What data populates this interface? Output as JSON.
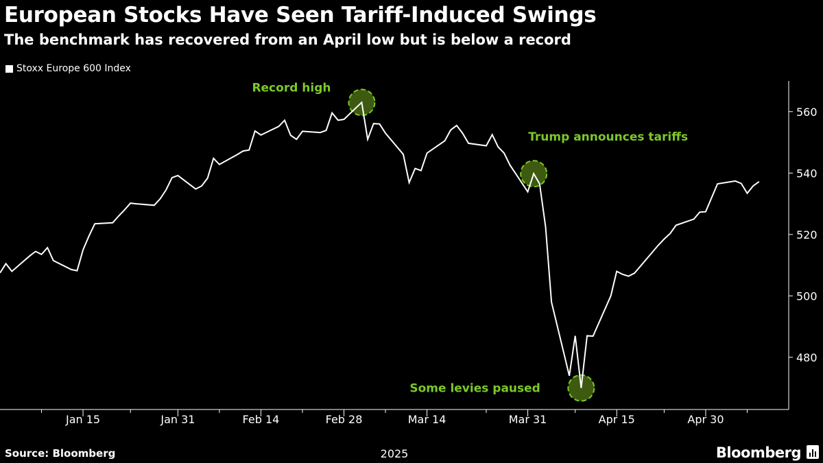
{
  "header": {
    "title": "European Stocks Have Seen Tariff-Induced Swings",
    "subtitle": "The benchmark has recovered from an April low but is below a record"
  },
  "footer": {
    "source": "Source: Bloomberg",
    "brand": "Bloomberg"
  },
  "colors": {
    "background": "#000000",
    "line": "#ffffff",
    "annotation": "#7cc928",
    "marker_fill": "#3d5a10"
  },
  "chart_data": {
    "type": "line",
    "title": "European Stocks Have Seen Tariff-Induced Swings",
    "subtitle": "The benchmark has recovered from an April low but is below a record",
    "xlabel": "2025",
    "ylabel": "",
    "ylim": [
      463,
      570
    ],
    "yticks": [
      480,
      500,
      520,
      540,
      560
    ],
    "ytick_labels": [
      "480",
      "500",
      "520",
      "540",
      "560"
    ],
    "xticks": [
      {
        "date": "2025-01-15",
        "label": "Jan 15"
      },
      {
        "date": "2025-01-31",
        "label": "Jan 31"
      },
      {
        "date": "2025-02-14",
        "label": "Feb 14"
      },
      {
        "date": "2025-02-28",
        "label": "Feb 28"
      },
      {
        "date": "2025-03-14",
        "label": "Mar 14"
      },
      {
        "date": "2025-03-31",
        "label": "Mar 31"
      },
      {
        "date": "2025-04-15",
        "label": "Apr 15"
      },
      {
        "date": "2025-04-30",
        "label": "Apr 30"
      }
    ],
    "minor_ticks": [
      "2025-01-08",
      "2025-01-23",
      "2025-02-07",
      "2025-02-21",
      "2025-03-07",
      "2025-03-24",
      "2025-04-08",
      "2025-04-23",
      "2025-05-07"
    ],
    "xlim": [
      "2025-01-01",
      "2025-05-14"
    ],
    "legend": "top-left",
    "grid": false,
    "series": [
      {
        "name": "Stoxx Europe 600 Index",
        "x": [
          "2025-01-01",
          "2025-01-02",
          "2025-01-03",
          "2025-01-06",
          "2025-01-07",
          "2025-01-08",
          "2025-01-09",
          "2025-01-10",
          "2025-01-13",
          "2025-01-14",
          "2025-01-15",
          "2025-01-16",
          "2025-01-17",
          "2025-01-20",
          "2025-01-21",
          "2025-01-22",
          "2025-01-23",
          "2025-01-24",
          "2025-01-27",
          "2025-01-28",
          "2025-01-29",
          "2025-01-30",
          "2025-01-31",
          "2025-02-03",
          "2025-02-04",
          "2025-02-05",
          "2025-02-06",
          "2025-02-07",
          "2025-02-10",
          "2025-02-11",
          "2025-02-12",
          "2025-02-13",
          "2025-02-14",
          "2025-02-17",
          "2025-02-18",
          "2025-02-19",
          "2025-02-20",
          "2025-02-21",
          "2025-02-24",
          "2025-02-25",
          "2025-02-26",
          "2025-02-27",
          "2025-02-28",
          "2025-03-03",
          "2025-03-04",
          "2025-03-05",
          "2025-03-06",
          "2025-03-07",
          "2025-03-10",
          "2025-03-11",
          "2025-03-12",
          "2025-03-13",
          "2025-03-14",
          "2025-03-17",
          "2025-03-18",
          "2025-03-19",
          "2025-03-20",
          "2025-03-21",
          "2025-03-24",
          "2025-03-25",
          "2025-03-26",
          "2025-03-27",
          "2025-03-28",
          "2025-03-31",
          "2025-04-01",
          "2025-04-02",
          "2025-04-03",
          "2025-04-04",
          "2025-04-07",
          "2025-04-08",
          "2025-04-09",
          "2025-04-10",
          "2025-04-11",
          "2025-04-14",
          "2025-04-15",
          "2025-04-16",
          "2025-04-17",
          "2025-04-18",
          "2025-04-22",
          "2025-04-23",
          "2025-04-24",
          "2025-04-25",
          "2025-04-28",
          "2025-04-29",
          "2025-04-30",
          "2025-05-02",
          "2025-05-05",
          "2025-05-06",
          "2025-05-07",
          "2025-05-08",
          "2025-05-09"
        ],
        "values": [
          507.5,
          510.5,
          508,
          513,
          514.5,
          513.5,
          515.7,
          511.5,
          508.6,
          508.2,
          515,
          519.5,
          523.5,
          523.8,
          526,
          528,
          530.2,
          530,
          529.5,
          531.6,
          534.5,
          538.5,
          539.2,
          534.8,
          535.8,
          538.3,
          544.8,
          542.8,
          546,
          547.2,
          547.5,
          553.7,
          552.4,
          555.2,
          557.2,
          552.3,
          551,
          553.6,
          553.2,
          553.9,
          559.6,
          557.2,
          557.5,
          563,
          551,
          556.1,
          556,
          553,
          546.1,
          536.9,
          541.5,
          540.8,
          546.5,
          550.5,
          554,
          555.5,
          553,
          549.7,
          548.9,
          552.5,
          548.5,
          546.5,
          542.6,
          533.9,
          539.8,
          536.5,
          522.5,
          498,
          474,
          487,
          470,
          487,
          486.9,
          500,
          508,
          507,
          506.4,
          507.4,
          516.5,
          518.5,
          520.3,
          523,
          525,
          527.3,
          527.4,
          536.5,
          537.4,
          536.6,
          533.4,
          535.8,
          537.2
        ]
      }
    ],
    "annotations": [
      {
        "text": "Record high",
        "date": "2025-03-03",
        "value": 563
      },
      {
        "text": "Trump announces tariffs",
        "date": "2025-04-01",
        "value": 539.8
      },
      {
        "text": "Some levies paused",
        "date": "2025-04-09",
        "value": 470
      }
    ]
  }
}
